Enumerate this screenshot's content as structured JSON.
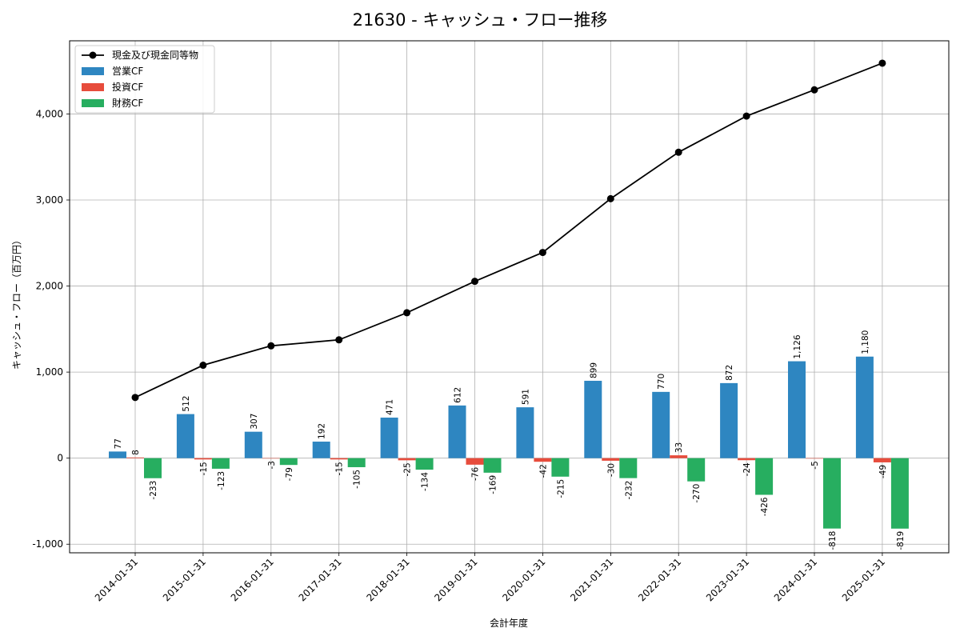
{
  "chart_data": {
    "type": "bar",
    "title": "21630 - キャッシュ・フロー推移",
    "xlabel": "会計年度",
    "ylabel": "キャッシュ・フロー（百万円）",
    "categories": [
      "2014-01-31",
      "2015-01-31",
      "2016-01-31",
      "2017-01-31",
      "2018-01-31",
      "2019-01-31",
      "2020-01-31",
      "2021-01-31",
      "2022-01-31",
      "2023-01-31",
      "2024-01-31",
      "2025-01-31"
    ],
    "ylim": [
      -1100,
      4850
    ],
    "yticks": [
      -1000,
      0,
      1000,
      2000,
      3000,
      4000
    ],
    "ytick_labels": [
      "-1,000",
      "0",
      "1,000",
      "2,000",
      "3,000",
      "4,000"
    ],
    "grid": true,
    "legend_position": "top-left",
    "series": [
      {
        "name": "営業CF",
        "kind": "bar",
        "color": "#2e86c1",
        "values": [
          77,
          512,
          307,
          192,
          471,
          612,
          591,
          899,
          770,
          872,
          1126,
          1180
        ],
        "labels": [
          "77",
          "512",
          "307",
          "192",
          "471",
          "612",
          "591",
          "899",
          "770",
          "872",
          "1,126",
          "1,180"
        ]
      },
      {
        "name": "投資CF",
        "kind": "bar",
        "color": "#e74c3c",
        "values": [
          8,
          -15,
          -3,
          -15,
          -25,
          -76,
          -42,
          -30,
          33,
          -24,
          -5,
          -49
        ],
        "labels": [
          "8",
          "-15",
          "-3",
          "-15",
          "-25",
          "-76",
          "-42",
          "-30",
          "33",
          "-24",
          "-5",
          "-49"
        ]
      },
      {
        "name": "財務CF",
        "kind": "bar",
        "color": "#27ae60",
        "values": [
          -233,
          -123,
          -79,
          -105,
          -134,
          -169,
          -215,
          -232,
          -270,
          -426,
          -818,
          -819
        ],
        "labels": [
          "-233",
          "-123",
          "-79",
          "-105",
          "-134",
          "-169",
          "-215",
          "-232",
          "-270",
          "-426",
          "-818",
          "-819"
        ]
      },
      {
        "name": "現金及び現金同等物",
        "kind": "line",
        "color": "#000000",
        "values": [
          705,
          1080,
          1305,
          1375,
          1690,
          2055,
          2390,
          3015,
          3555,
          3975,
          4280,
          4590
        ]
      }
    ]
  }
}
